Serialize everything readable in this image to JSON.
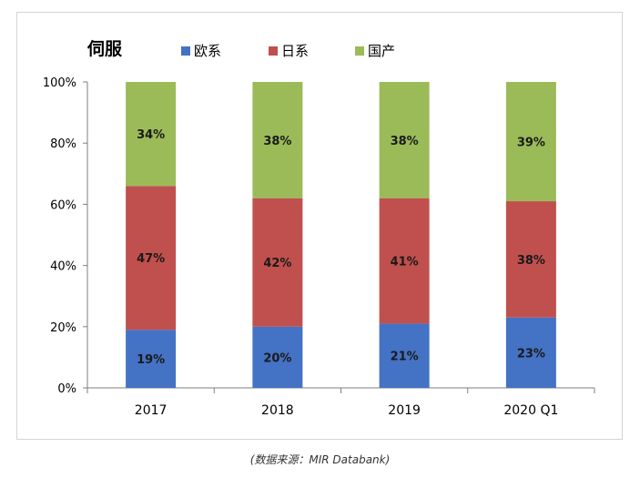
{
  "chart_data": {
    "type": "bar",
    "stacked": true,
    "title": "伺服",
    "categories": [
      "2017",
      "2018",
      "2019",
      "2020 Q1"
    ],
    "series": [
      {
        "name": "欧系",
        "color": "#4472C4",
        "values": [
          19,
          20,
          21,
          23
        ],
        "labels": [
          "19%",
          "20%",
          "21%",
          "23%"
        ]
      },
      {
        "name": "日系",
        "color": "#C0504D",
        "values": [
          47,
          42,
          41,
          38
        ],
        "labels": [
          "47%",
          "42%",
          "41%",
          "38%"
        ]
      },
      {
        "name": "国产",
        "color": "#9BBB59",
        "values": [
          34,
          38,
          38,
          39
        ],
        "labels": [
          "34%",
          "38%",
          "38%",
          "39%"
        ]
      }
    ],
    "ylim": [
      0,
      100
    ],
    "yticks": [
      0,
      20,
      40,
      60,
      80,
      100
    ],
    "ytick_labels": [
      "0%",
      "20%",
      "40%",
      "60%",
      "80%",
      "100%"
    ],
    "xlabel": "",
    "ylabel": "",
    "grid": false,
    "legend_position": "top"
  },
  "source_note": "(数据来源：MIR Databank)"
}
